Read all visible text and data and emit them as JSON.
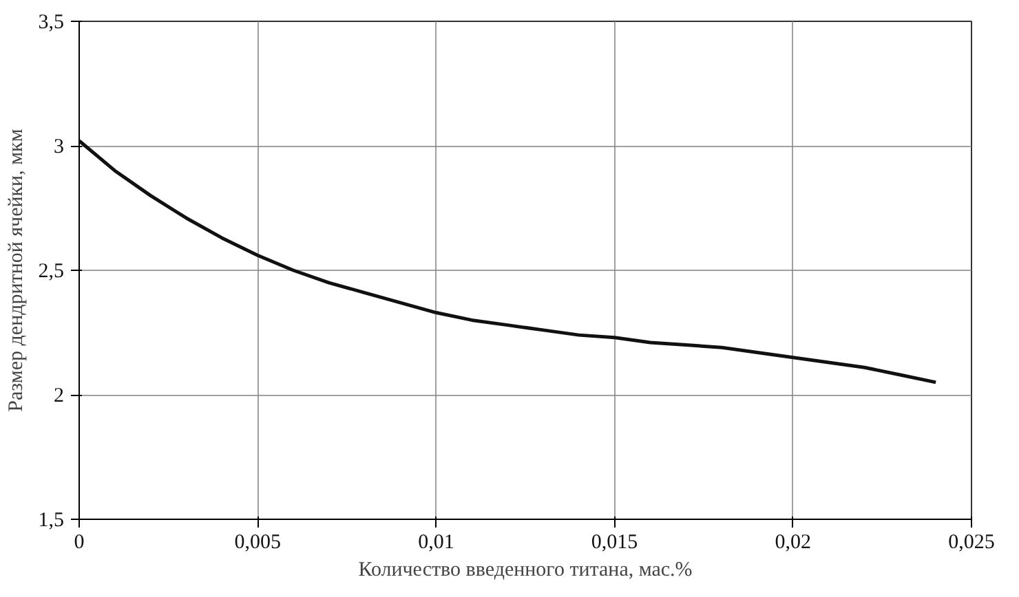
{
  "chart_data": {
    "type": "line",
    "xlabel": "Количество введенного титана, мас.%",
    "ylabel": "Размер дендритной ячейки, мкм",
    "x": [
      0,
      0.001,
      0.002,
      0.003,
      0.004,
      0.005,
      0.006,
      0.007,
      0.008,
      0.009,
      0.01,
      0.011,
      0.012,
      0.013,
      0.014,
      0.015,
      0.016,
      0.017,
      0.018,
      0.019,
      0.02,
      0.021,
      0.022,
      0.023,
      0.024
    ],
    "series": [
      {
        "color": "#111111",
        "values": [
          3.02,
          2.9,
          2.8,
          2.71,
          2.63,
          2.56,
          2.5,
          2.45,
          2.41,
          2.37,
          2.33,
          2.3,
          2.28,
          2.26,
          2.24,
          2.23,
          2.21,
          2.2,
          2.19,
          2.17,
          2.15,
          2.13,
          2.11,
          2.08,
          2.05
        ]
      }
    ],
    "xlim": [
      0,
      0.025
    ],
    "ylim": [
      1.5,
      3.5
    ],
    "xticks": [
      {
        "value": 0,
        "label": "0"
      },
      {
        "value": 0.005,
        "label": "0,005"
      },
      {
        "value": 0.01,
        "label": "0,01"
      },
      {
        "value": 0.015,
        "label": "0,015"
      },
      {
        "value": 0.02,
        "label": "0,02"
      },
      {
        "value": 0.025,
        "label": "0,025"
      }
    ],
    "yticks": [
      {
        "value": 1.5,
        "label": "1,5"
      },
      {
        "value": 2,
        "label": "2"
      },
      {
        "value": 2.5,
        "label": "2,5"
      },
      {
        "value": 3,
        "label": "3"
      },
      {
        "value": 3.5,
        "label": "3,5"
      }
    ],
    "grid": true,
    "marker": "none",
    "line_style": "solid"
  }
}
